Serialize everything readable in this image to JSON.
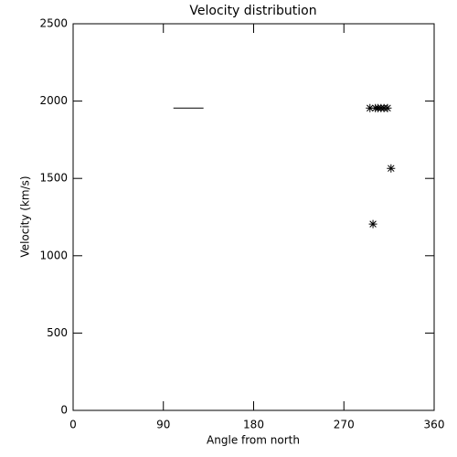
{
  "chart_data": {
    "type": "scatter",
    "title": "Velocity distribution",
    "x_label": "Angle from north",
    "y_label": "Velocity (km/s)",
    "x": [
      296,
      301.5,
      304,
      307,
      310,
      313.5,
      317,
      299
    ],
    "values": [
      1955,
      1955,
      1955,
      1955,
      1955,
      1955,
      1565,
      1205
    ],
    "marker": "asterisk",
    "color": "#000000",
    "segment": {
      "x": [
        100,
        130
      ],
      "y": [
        1955,
        1955
      ]
    },
    "xlim": [
      0,
      360
    ],
    "xticks": [
      0,
      90,
      180,
      270,
      360
    ],
    "ylim": [
      0,
      2500
    ],
    "yticks": [
      0,
      500,
      1000,
      1500,
      2000,
      2500
    ]
  }
}
